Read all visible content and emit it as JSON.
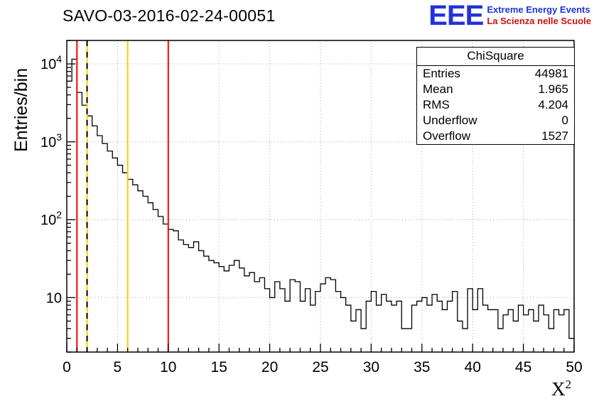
{
  "title": "SAVO-03-2016-02-24-00051",
  "logo": {
    "letters": "EEE",
    "line1": "Extreme Energy Events",
    "line2": "La Scienza nelle Scuole",
    "blue": "#2233dd",
    "red": "#cc1111"
  },
  "stats": {
    "title": "ChiSquare",
    "rows": [
      {
        "label": "Entries",
        "value": "44981"
      },
      {
        "label": "Mean",
        "value": "1.965"
      },
      {
        "label": "RMS",
        "value": "4.204"
      },
      {
        "label": "Underflow",
        "value": "0"
      },
      {
        "label": "Overflow",
        "value": "1527"
      }
    ]
  },
  "axes": {
    "ylabel": "Entries/bin",
    "xlabel_base": "X",
    "xlabel_sup": "2"
  },
  "chart_data": {
    "type": "bar",
    "title": "SAVO-03-2016-02-24-00051",
    "xlabel": "X^2",
    "ylabel": "Entries/bin",
    "yscale": "log",
    "xlim": [
      0,
      50
    ],
    "ylim": [
      2,
      20000
    ],
    "x_major_ticks": [
      0,
      5,
      10,
      15,
      20,
      25,
      30,
      35,
      40,
      45,
      50
    ],
    "x_minor_step": 1,
    "y_major_ticks": [
      10,
      100,
      1000,
      10000
    ],
    "grid": true,
    "grid_color": "#aaaaaa",
    "line_color": "#000000",
    "bin_start": 0,
    "bin_width": 0.5,
    "values": [
      6000,
      11500,
      4300,
      2950,
      2150,
      1600,
      1200,
      950,
      760,
      620,
      500,
      400,
      330,
      280,
      235,
      200,
      165,
      135,
      110,
      88,
      75,
      72,
      55,
      48,
      44,
      52,
      40,
      34,
      30,
      28,
      25,
      22,
      26,
      30,
      24,
      19,
      21,
      16,
      18,
      13,
      10,
      16,
      13,
      9,
      17,
      16,
      9,
      13,
      8,
      12,
      15,
      18,
      17,
      12,
      10,
      8,
      5,
      7,
      4,
      9,
      12,
      8,
      11,
      9,
      8,
      9,
      4,
      4,
      8,
      9,
      10,
      8,
      11,
      9,
      7,
      9,
      12,
      5,
      4,
      13,
      7,
      13,
      8,
      7,
      7,
      4,
      6,
      7,
      5,
      8,
      6,
      7,
      5,
      8,
      6,
      4,
      7,
      6,
      7,
      3
    ],
    "vlines": [
      {
        "x": 1,
        "color": "#ff0000"
      },
      {
        "x": 2,
        "color": "#ffcc00",
        "overlay_dash_color": "#000000"
      },
      {
        "x": 6,
        "color": "#ffcc00"
      },
      {
        "x": 10,
        "color": "#ff0000"
      }
    ]
  }
}
